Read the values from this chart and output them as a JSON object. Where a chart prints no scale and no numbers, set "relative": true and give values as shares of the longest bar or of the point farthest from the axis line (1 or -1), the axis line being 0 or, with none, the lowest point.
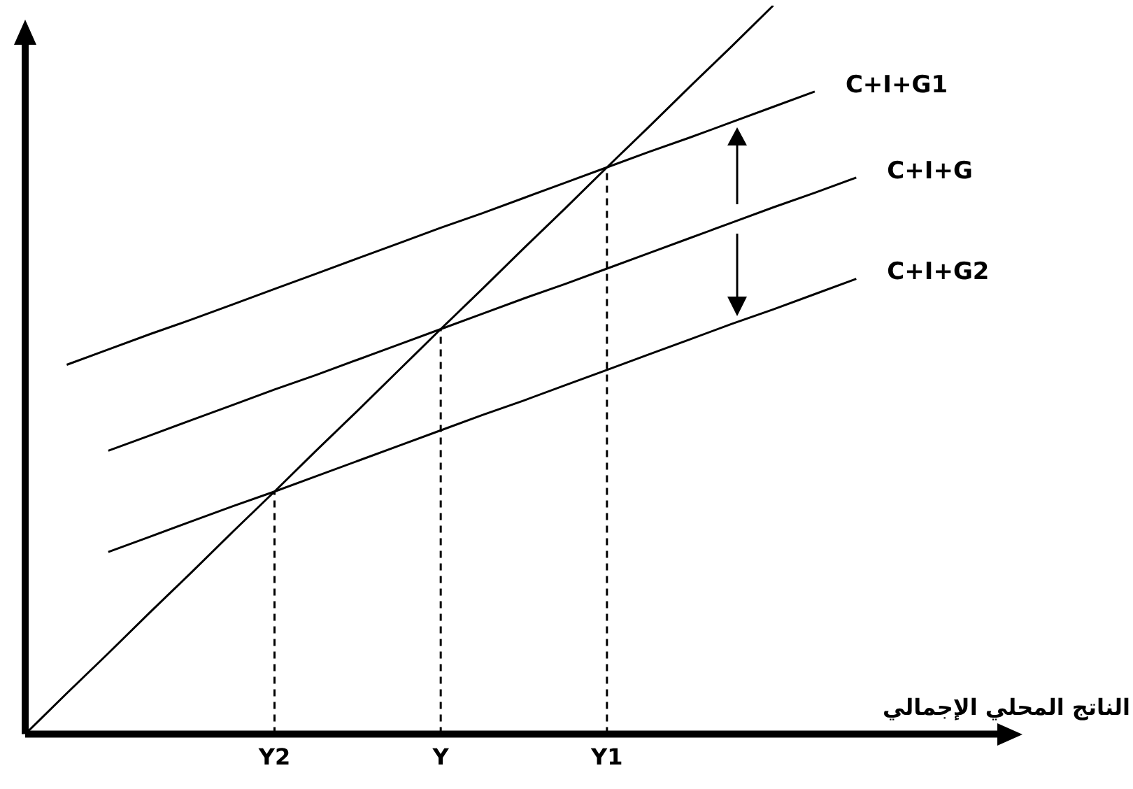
{
  "chart_data": {
    "type": "line",
    "relative": true,
    "xlabel": "الناتج المحلي الإجمالي",
    "categories": [
      null,
      null,
      null,
      null,
      null,
      null,
      "Y2",
      null,
      null,
      null,
      "Y",
      null,
      null,
      null,
      "Y1",
      null,
      null,
      null,
      null,
      null,
      null,
      null,
      null,
      null,
      null
    ],
    "grid": false,
    "legend": false,
    "marker": "none",
    "line_style": "solid",
    "series": [
      {
        "color": "#000000",
        "values": [
          0,
          0.056,
          0.111,
          0.167,
          0.222,
          0.278,
          0.333,
          0.389,
          0.444,
          0.5,
          0.556,
          0.611,
          0.667,
          0.722,
          0.778,
          0.833,
          0.889,
          0.944,
          1,
          null,
          null,
          null,
          null,
          null,
          null
        ]
      },
      {
        "name": "C+I+G1",
        "color": "#000000",
        "values": [
          null,
          0.507,
          0.528,
          0.549,
          0.569,
          0.59,
          0.611,
          0.632,
          0.653,
          0.674,
          0.695,
          0.715,
          0.736,
          0.757,
          0.778,
          0.799,
          0.819,
          0.84,
          0.861,
          0.882,
          null,
          null,
          null,
          null,
          null
        ]
      },
      {
        "name": "C+I+G",
        "color": "#000000",
        "values": [
          null,
          null,
          0.389,
          0.41,
          0.431,
          0.452,
          0.473,
          0.493,
          0.514,
          0.535,
          0.556,
          0.577,
          0.598,
          0.618,
          0.639,
          0.66,
          0.681,
          0.702,
          0.723,
          0.743,
          0.764,
          null,
          null,
          null,
          null
        ]
      },
      {
        "name": "C+I+G2",
        "color": "#000000",
        "values": [
          null,
          null,
          0.25,
          0.271,
          0.292,
          0.313,
          0.333,
          0.354,
          0.375,
          0.396,
          0.417,
          0.438,
          0.458,
          0.479,
          0.5,
          0.521,
          0.542,
          0.563,
          0.583,
          0.604,
          0.625,
          null,
          null,
          null,
          null
        ]
      }
    ],
    "ref_lines": [
      {
        "axis": "x",
        "value": "Y2",
        "line_style": "dashed",
        "color": "#000000"
      },
      {
        "axis": "x",
        "value": "Y",
        "line_style": "dashed",
        "color": "#000000"
      },
      {
        "axis": "x",
        "value": "Y1",
        "line_style": "dashed",
        "color": "#000000"
      }
    ]
  }
}
